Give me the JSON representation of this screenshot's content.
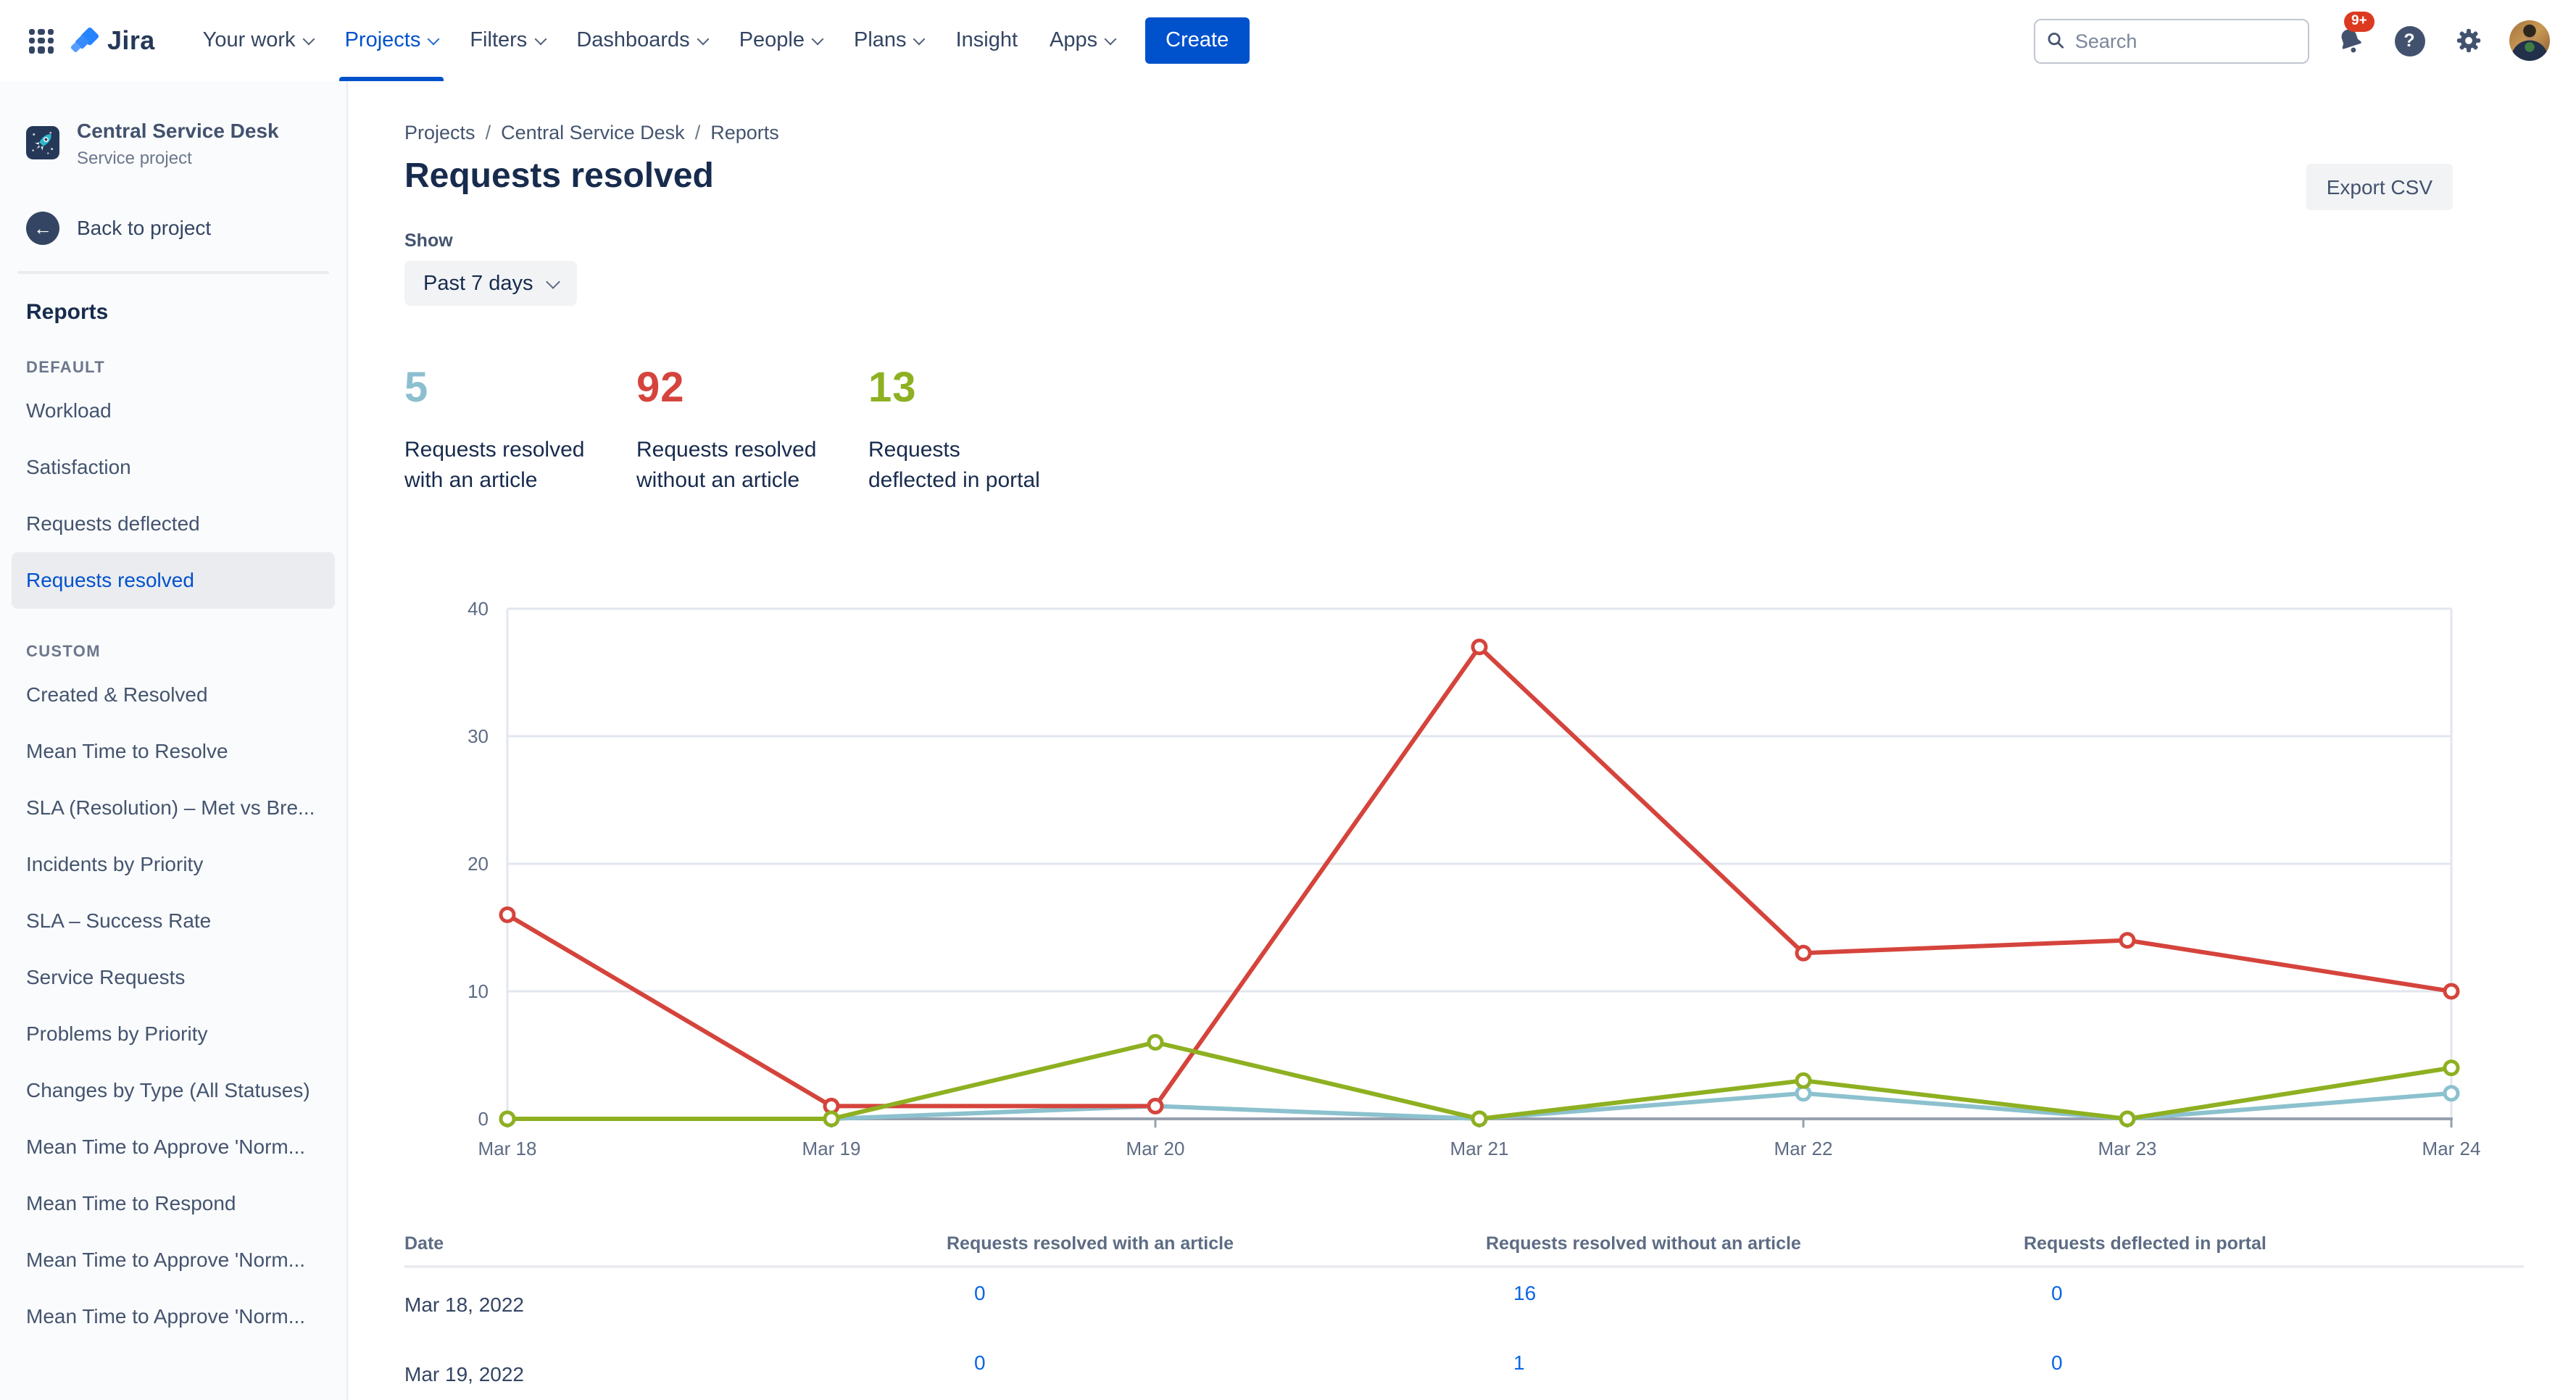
{
  "navbar": {
    "items": [
      {
        "label": "Your work"
      },
      {
        "label": "Projects"
      },
      {
        "label": "Filters"
      },
      {
        "label": "Dashboards"
      },
      {
        "label": "People"
      },
      {
        "label": "Plans"
      },
      {
        "label": "Insight"
      },
      {
        "label": "Apps"
      }
    ],
    "create_label": "Create",
    "search_placeholder": "Search",
    "notifications_badge": "9+",
    "help_glyph": "?",
    "accent_color": "#0052CC"
  },
  "sidebar": {
    "project_name": "Central Service Desk",
    "project_type": "Service project",
    "back_label": "Back to project",
    "back_glyph": "←",
    "section_title": "Reports",
    "groups": [
      {
        "label": "DEFAULT",
        "items": [
          {
            "label": "Workload"
          },
          {
            "label": "Satisfaction"
          },
          {
            "label": "Requests deflected"
          },
          {
            "label": "Requests resolved"
          }
        ]
      },
      {
        "label": "CUSTOM",
        "items": [
          {
            "label": "Created & Resolved"
          },
          {
            "label": "Mean Time to Resolve"
          },
          {
            "label": "SLA (Resolution) – Met vs Bre..."
          },
          {
            "label": "Incidents by Priority"
          },
          {
            "label": "SLA – Success Rate"
          },
          {
            "label": "Service Requests"
          },
          {
            "label": "Problems by Priority"
          },
          {
            "label": "Changes by Type (All Statuses)"
          },
          {
            "label": "Mean Time to Approve 'Norm..."
          },
          {
            "label": "Mean Time to Respond"
          },
          {
            "label": "Mean Time to Approve 'Norm..."
          },
          {
            "label": "Mean Time to Approve 'Norm..."
          }
        ]
      }
    ],
    "selected_item": "Requests resolved"
  },
  "main": {
    "breadcrumbs": [
      "Projects",
      "Central Service Desk",
      "Reports"
    ],
    "crumb_separator": "/",
    "title": "Requests resolved",
    "export_label": "Export CSV",
    "show_label": "Show",
    "period_value": "Past 7 days",
    "stats": [
      {
        "value": "5",
        "label_line1": "Requests resolved",
        "label_line2": "with an article",
        "color": "#8CBFD0"
      },
      {
        "value": "92",
        "label_line1": "Requests resolved",
        "label_line2": "without an article",
        "color": "#D5443C"
      },
      {
        "value": "13",
        "label_line1": "Requests",
        "label_line2": "deflected in portal",
        "color": "#8EB021"
      }
    ]
  },
  "chart_data": {
    "type": "line",
    "title": "Requests resolved — past 7 days",
    "x": [
      "Mar 18",
      "Mar 19",
      "Mar 20",
      "Mar 21",
      "Mar 22",
      "Mar 23",
      "Mar 24"
    ],
    "series": [
      {
        "name": "Requests resolved with an article",
        "color": "#8CC1CE",
        "values": [
          0,
          0,
          1,
          0,
          2,
          0,
          2
        ]
      },
      {
        "name": "Requests resolved without an article",
        "color": "#D5443C",
        "values": [
          16,
          1,
          1,
          37,
          13,
          14,
          10
        ]
      },
      {
        "name": "Requests deflected in portal",
        "color": "#8EB021",
        "values": [
          0,
          0,
          6,
          0,
          3,
          0,
          4
        ]
      }
    ],
    "ylim": [
      0,
      40
    ],
    "yticks": [
      0,
      10,
      20,
      30,
      40
    ],
    "grid": true,
    "legend": "none",
    "grid_color": "#E2E7EF",
    "axis_color": "#97A0AF",
    "tick_label_color": "#5E6C84"
  },
  "table": {
    "columns": [
      "Date",
      "Requests resolved with an article",
      "Requests resolved without an article",
      "Requests deflected in portal"
    ],
    "rows": [
      {
        "date": "Mar 18, 2022",
        "values": [
          "0",
          "16",
          "0"
        ]
      },
      {
        "date": "Mar 19, 2022",
        "values": [
          "0",
          "1",
          "0"
        ]
      }
    ]
  }
}
